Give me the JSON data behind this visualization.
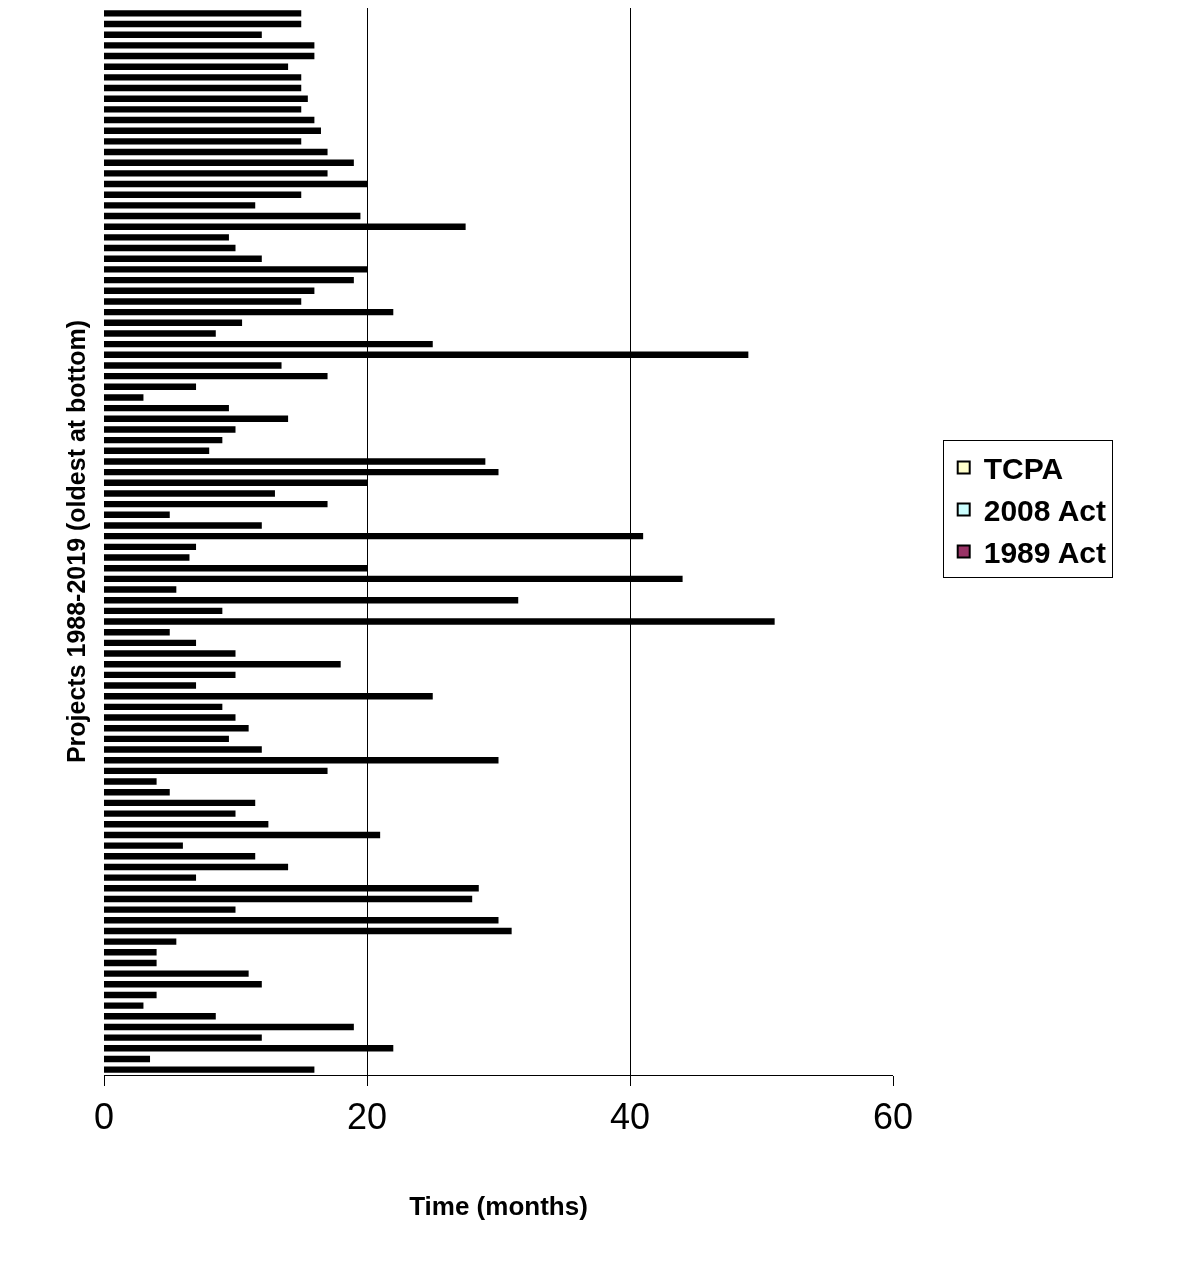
{
  "chart_data": {
    "type": "bar",
    "orientation": "horizontal",
    "xlabel": "Time (months)",
    "ylabel": "Projects 1988-2019 (oldest at bottom)",
    "categories": [
      null,
      null,
      null,
      null,
      null,
      null,
      null,
      null,
      null,
      null,
      null,
      null,
      null,
      null,
      null,
      null,
      null,
      null,
      null,
      null,
      null,
      null,
      null,
      null,
      null,
      null,
      null,
      null,
      null,
      null,
      null,
      null,
      null,
      null,
      null,
      null,
      null,
      null,
      null,
      null,
      null,
      null,
      null,
      null,
      null,
      null,
      null,
      null,
      null,
      null,
      null,
      null,
      null,
      null,
      null,
      null,
      null,
      null,
      null,
      null,
      null,
      null,
      null,
      null,
      null,
      null,
      null,
      null,
      null,
      null,
      null,
      null,
      null,
      null,
      null,
      null,
      null,
      null,
      null,
      null,
      null,
      null,
      null,
      null,
      null,
      null,
      null,
      null,
      null,
      null,
      null,
      null,
      null,
      null,
      null,
      null,
      null,
      null,
      null,
      null
    ],
    "series": [
      {
        "color": "#000000",
        "values": [
          15,
          15,
          12,
          16,
          16,
          14,
          15,
          15,
          15.5,
          15,
          16,
          16.5,
          15,
          17,
          19,
          17,
          20,
          15,
          11.5,
          19.5,
          27.5,
          9.5,
          10,
          12,
          20,
          19,
          16,
          15,
          22,
          10.5,
          8.5,
          25,
          49,
          13.5,
          17,
          7,
          3,
          9.5,
          14,
          10,
          9,
          8,
          29,
          30,
          20,
          13,
          17,
          5,
          12,
          41,
          7,
          6.5,
          20,
          44,
          5.5,
          31.5,
          9,
          51,
          5,
          7,
          10,
          18,
          10,
          7,
          25,
          9,
          10,
          11,
          9.5,
          12,
          30,
          17,
          4,
          5,
          11.5,
          10,
          12.5,
          21,
          6,
          11.5,
          14,
          7,
          28.5,
          28,
          10,
          30,
          31,
          5.5,
          4,
          4,
          11,
          12,
          4,
          3,
          8.5,
          19,
          12,
          22,
          3.5,
          16
        ]
      },
      {
        "name": "TCPA",
        "color": "#ffffcc",
        "values": [
          null,
          null,
          null,
          null,
          null,
          null,
          null,
          null,
          null,
          null,
          null,
          null,
          null,
          null,
          null,
          null,
          null,
          null,
          null,
          null,
          null,
          null,
          null,
          null,
          null,
          null,
          null,
          null,
          null,
          null,
          null,
          null,
          null,
          null,
          null,
          null,
          null,
          null,
          null,
          null,
          null,
          null,
          null,
          null,
          null,
          null,
          null,
          null,
          null,
          null,
          null,
          null,
          null,
          null,
          null,
          null,
          null,
          null,
          null,
          null,
          null,
          null,
          null,
          null,
          null,
          null,
          null,
          null,
          null,
          null,
          null,
          null,
          null,
          null,
          null,
          null,
          null,
          null,
          null,
          null,
          null,
          null,
          null,
          null,
          null,
          null,
          null,
          null,
          null,
          null,
          null,
          null,
          null,
          null,
          null,
          null,
          null,
          null,
          null,
          null
        ]
      },
      {
        "name": "2008 Act",
        "color": "#ccffff",
        "values": [
          null,
          null,
          null,
          null,
          null,
          null,
          null,
          null,
          null,
          null,
          null,
          null,
          null,
          null,
          null,
          null,
          null,
          null,
          null,
          null,
          null,
          null,
          null,
          null,
          null,
          null,
          null,
          null,
          null,
          null,
          null,
          null,
          null,
          null,
          null,
          null,
          null,
          null,
          null,
          null,
          null,
          null,
          null,
          null,
          null,
          null,
          null,
          null,
          null,
          null,
          null,
          null,
          null,
          null,
          null,
          null,
          null,
          null,
          null,
          null,
          null,
          null,
          null,
          null,
          null,
          null,
          null,
          null,
          null,
          null,
          null,
          null,
          null,
          null,
          null,
          null,
          null,
          null,
          null,
          null,
          null,
          null,
          null,
          null,
          null,
          null,
          null,
          null,
          null,
          null,
          null,
          null,
          null,
          null,
          null,
          null,
          null,
          null,
          null,
          null
        ]
      },
      {
        "name": "1989 Act",
        "color": "#993366",
        "values": [
          null,
          null,
          null,
          null,
          null,
          null,
          null,
          null,
          null,
          null,
          null,
          null,
          null,
          null,
          null,
          null,
          null,
          null,
          null,
          null,
          null,
          null,
          null,
          null,
          null,
          null,
          null,
          null,
          null,
          null,
          null,
          null,
          null,
          null,
          null,
          null,
          null,
          null,
          null,
          null,
          null,
          null,
          null,
          null,
          null,
          null,
          null,
          null,
          null,
          null,
          null,
          null,
          null,
          null,
          null,
          null,
          null,
          null,
          null,
          null,
          null,
          null,
          null,
          null,
          null,
          null,
          null,
          null,
          null,
          null,
          null,
          null,
          null,
          null,
          null,
          null,
          null,
          null,
          null,
          null,
          null,
          null,
          null,
          null,
          null,
          null,
          null,
          null,
          null,
          null,
          null,
          null,
          null,
          null,
          null,
          null,
          null,
          null,
          null,
          null
        ]
      }
    ],
    "xlim": [
      0,
      60
    ],
    "xticks": [
      0,
      20,
      40,
      60
    ],
    "grid": "x",
    "legend": "right",
    "tick_labels": "x"
  }
}
